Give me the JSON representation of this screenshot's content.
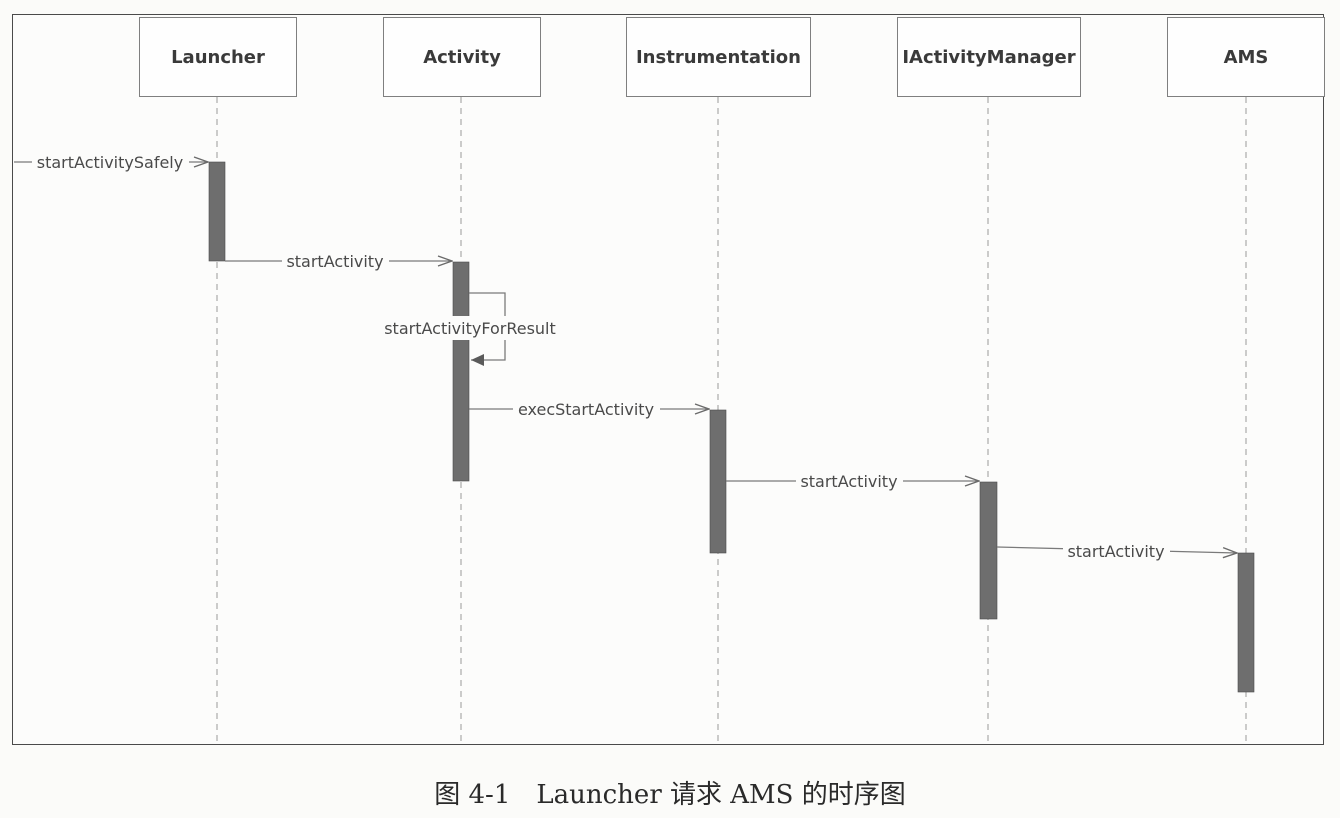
{
  "diagram": {
    "participants": [
      {
        "id": "launcher",
        "name": "Launcher"
      },
      {
        "id": "activity",
        "name": "Activity"
      },
      {
        "id": "instrumentation",
        "name": "Instrumentation"
      },
      {
        "id": "iactivitymanager",
        "name": "IActivityManager"
      },
      {
        "id": "ams",
        "name": "AMS"
      }
    ],
    "messages": [
      {
        "id": "m1",
        "label": "startActivitySafely",
        "from": "external",
        "to": "launcher"
      },
      {
        "id": "m2",
        "label": "startActivity",
        "from": "launcher",
        "to": "activity"
      },
      {
        "id": "m3",
        "label": "startActivityForResult",
        "from": "activity",
        "to": "activity",
        "self": true
      },
      {
        "id": "m4",
        "label": "execStartActivity",
        "from": "activity",
        "to": "instrumentation"
      },
      {
        "id": "m5",
        "label": "startActivity",
        "from": "instrumentation",
        "to": "iactivitymanager"
      },
      {
        "id": "m6",
        "label": "startActivity",
        "from": "iactivitymanager",
        "to": "ams"
      }
    ]
  },
  "caption": "图 4-1　Launcher 请求 AMS 的时序图",
  "colors": {
    "activation": "#6e6e6e",
    "line": "#7a7a7a",
    "text": "#4a4a4a",
    "frame": "#4a4a4a"
  }
}
